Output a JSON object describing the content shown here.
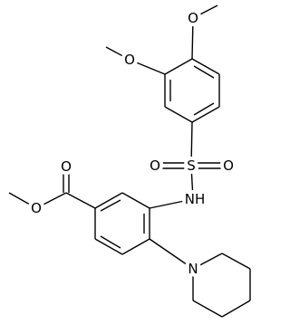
{
  "atoms": {
    "o_methoxy_top": "O",
    "o_methoxy_left": "O",
    "o_sulfonyl_left": "O",
    "s": "S",
    "o_sulfonyl_right": "O",
    "nh": "NH",
    "o_carbonyl": "O",
    "o_ester": "O",
    "n_piperidine": "N"
  }
}
